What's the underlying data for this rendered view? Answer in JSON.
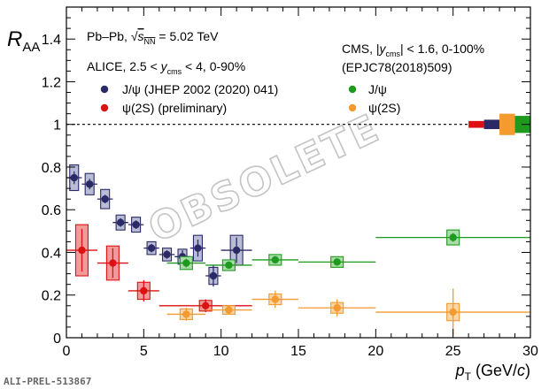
{
  "chart_data": {
    "type": "scatter",
    "y_axis_label": "R",
    "y_axis_label_sub": "AA",
    "x_axis_label": "p",
    "x_axis_label_sub": "T",
    "x_axis_unit_open": " (GeV/",
    "x_axis_unit_c": "c",
    "x_axis_unit_close": ")",
    "xlim": [
      0,
      30
    ],
    "ylim": [
      0,
      1.55
    ],
    "x_ticks": [
      "0",
      "5",
      "10",
      "15",
      "20",
      "25",
      "30"
    ],
    "y_ticks": [
      "0",
      "0.2",
      "0.4",
      "0.6",
      "0.8",
      "1",
      "1.2",
      "1.4"
    ],
    "reference_line": 1,
    "watermark": "OBSOLETE",
    "footer": "ALI-PREL-513867",
    "system_label": {
      "a": "Pb–Pb, ",
      "b": "s",
      "c": "NN",
      "d": " = 5.02 TeV"
    },
    "alice_label": {
      "a": "ALICE, 2.5 < ",
      "b": "y",
      "c": "cms",
      "d": " < 4, 0-90%"
    },
    "cms_label": {
      "a": "CMS, |",
      "b": "y",
      "c": "cms",
      "d": "| < 1.6, 0-100%"
    },
    "cms_reference": "(EPJC78(2018)509)",
    "series": [
      {
        "name": "J/ψ (JHEP 2002 (2020) 041)",
        "color": "#2b2a66",
        "box_color": "#b8bcd4",
        "points": [
          {
            "x": 0.5,
            "y": 0.75,
            "ex": 0.5,
            "ey": 0.03,
            "sys": 0.06
          },
          {
            "x": 1.5,
            "y": 0.72,
            "ex": 0.5,
            "ey": 0.025,
            "sys": 0.05
          },
          {
            "x": 2.5,
            "y": 0.65,
            "ex": 0.5,
            "ey": 0.02,
            "sys": 0.045
          },
          {
            "x": 3.5,
            "y": 0.54,
            "ex": 0.5,
            "ey": 0.02,
            "sys": 0.035
          },
          {
            "x": 4.5,
            "y": 0.53,
            "ex": 0.5,
            "ey": 0.02,
            "sys": 0.035
          },
          {
            "x": 5.5,
            "y": 0.42,
            "ex": 0.5,
            "ey": 0.02,
            "sys": 0.03
          },
          {
            "x": 6.5,
            "y": 0.39,
            "ex": 0.5,
            "ey": 0.02,
            "sys": 0.03
          },
          {
            "x": 7.5,
            "y": 0.38,
            "ex": 0.5,
            "ey": 0.03,
            "sys": 0.035
          },
          {
            "x": 8.5,
            "y": 0.42,
            "ex": 0.5,
            "ey": 0.04,
            "sys": 0.06
          },
          {
            "x": 9.5,
            "y": 0.29,
            "ex": 0.5,
            "ey": 0.05,
            "sys": 0.04
          },
          {
            "x": 11.0,
            "y": 0.41,
            "ex": 1.0,
            "ey": 0.06,
            "sys": 0.07
          }
        ]
      },
      {
        "name": "ψ(2S) (preliminary)",
        "color": "#dd1111",
        "box_color": "#f29a9a",
        "points": [
          {
            "x": 1.0,
            "y": 0.41,
            "ex": 1.0,
            "ey": 0.1,
            "sys": 0.12
          },
          {
            "x": 3.0,
            "y": 0.35,
            "ex": 1.0,
            "ey": 0.07,
            "sys": 0.08
          },
          {
            "x": 5.0,
            "y": 0.22,
            "ex": 1.0,
            "ey": 0.05,
            "sys": 0.04
          },
          {
            "x": 9.0,
            "y": 0.15,
            "ex": 3.0,
            "ey": 0.03,
            "sys": 0.025
          }
        ]
      },
      {
        "name": "J/ψ",
        "color": "#1f9a1f",
        "box_color": "#a8dca8",
        "points": [
          {
            "x": 7.75,
            "y": 0.35,
            "ex": 1.25,
            "ey": 0.02,
            "sys": 0.03
          },
          {
            "x": 10.5,
            "y": 0.34,
            "ex": 1.5,
            "ey": 0.015,
            "sys": 0.025
          },
          {
            "x": 13.5,
            "y": 0.365,
            "ex": 1.5,
            "ey": 0.015,
            "sys": 0.025
          },
          {
            "x": 17.5,
            "y": 0.355,
            "ex": 2.5,
            "ey": 0.015,
            "sys": 0.025
          },
          {
            "x": 25.0,
            "y": 0.47,
            "ex": 5.0,
            "ey": 0.02,
            "sys": 0.035
          }
        ]
      },
      {
        "name": "ψ(2S)",
        "color": "#f49a2e",
        "box_color": "#fad7a8",
        "points": [
          {
            "x": 7.75,
            "y": 0.11,
            "ex": 1.25,
            "ey": 0.03,
            "sys": 0.025
          },
          {
            "x": 10.5,
            "y": 0.13,
            "ex": 1.5,
            "ey": 0.02,
            "sys": 0.02
          },
          {
            "x": 13.5,
            "y": 0.18,
            "ex": 1.5,
            "ey": 0.04,
            "sys": 0.025
          },
          {
            "x": 17.5,
            "y": 0.14,
            "ex": 2.5,
            "ey": 0.04,
            "sys": 0.025
          },
          {
            "x": 25.0,
            "y": 0.12,
            "ex": 5.0,
            "ey": 0.11,
            "sys": 0.04
          }
        ]
      }
    ],
    "global_uncertainties": [
      {
        "x_from": 26.0,
        "x_to": 27.0,
        "half_height": 0.016,
        "color": "#dd1111"
      },
      {
        "x_from": 27.0,
        "x_to": 28.0,
        "half_height": 0.022,
        "color": "#2b2a66"
      },
      {
        "x_from": 28.0,
        "x_to": 29.0,
        "half_height": 0.05,
        "color": "#f49a2e"
      },
      {
        "x_from": 29.0,
        "x_to": 30.0,
        "half_height": 0.04,
        "color": "#1f9a1f"
      }
    ]
  }
}
